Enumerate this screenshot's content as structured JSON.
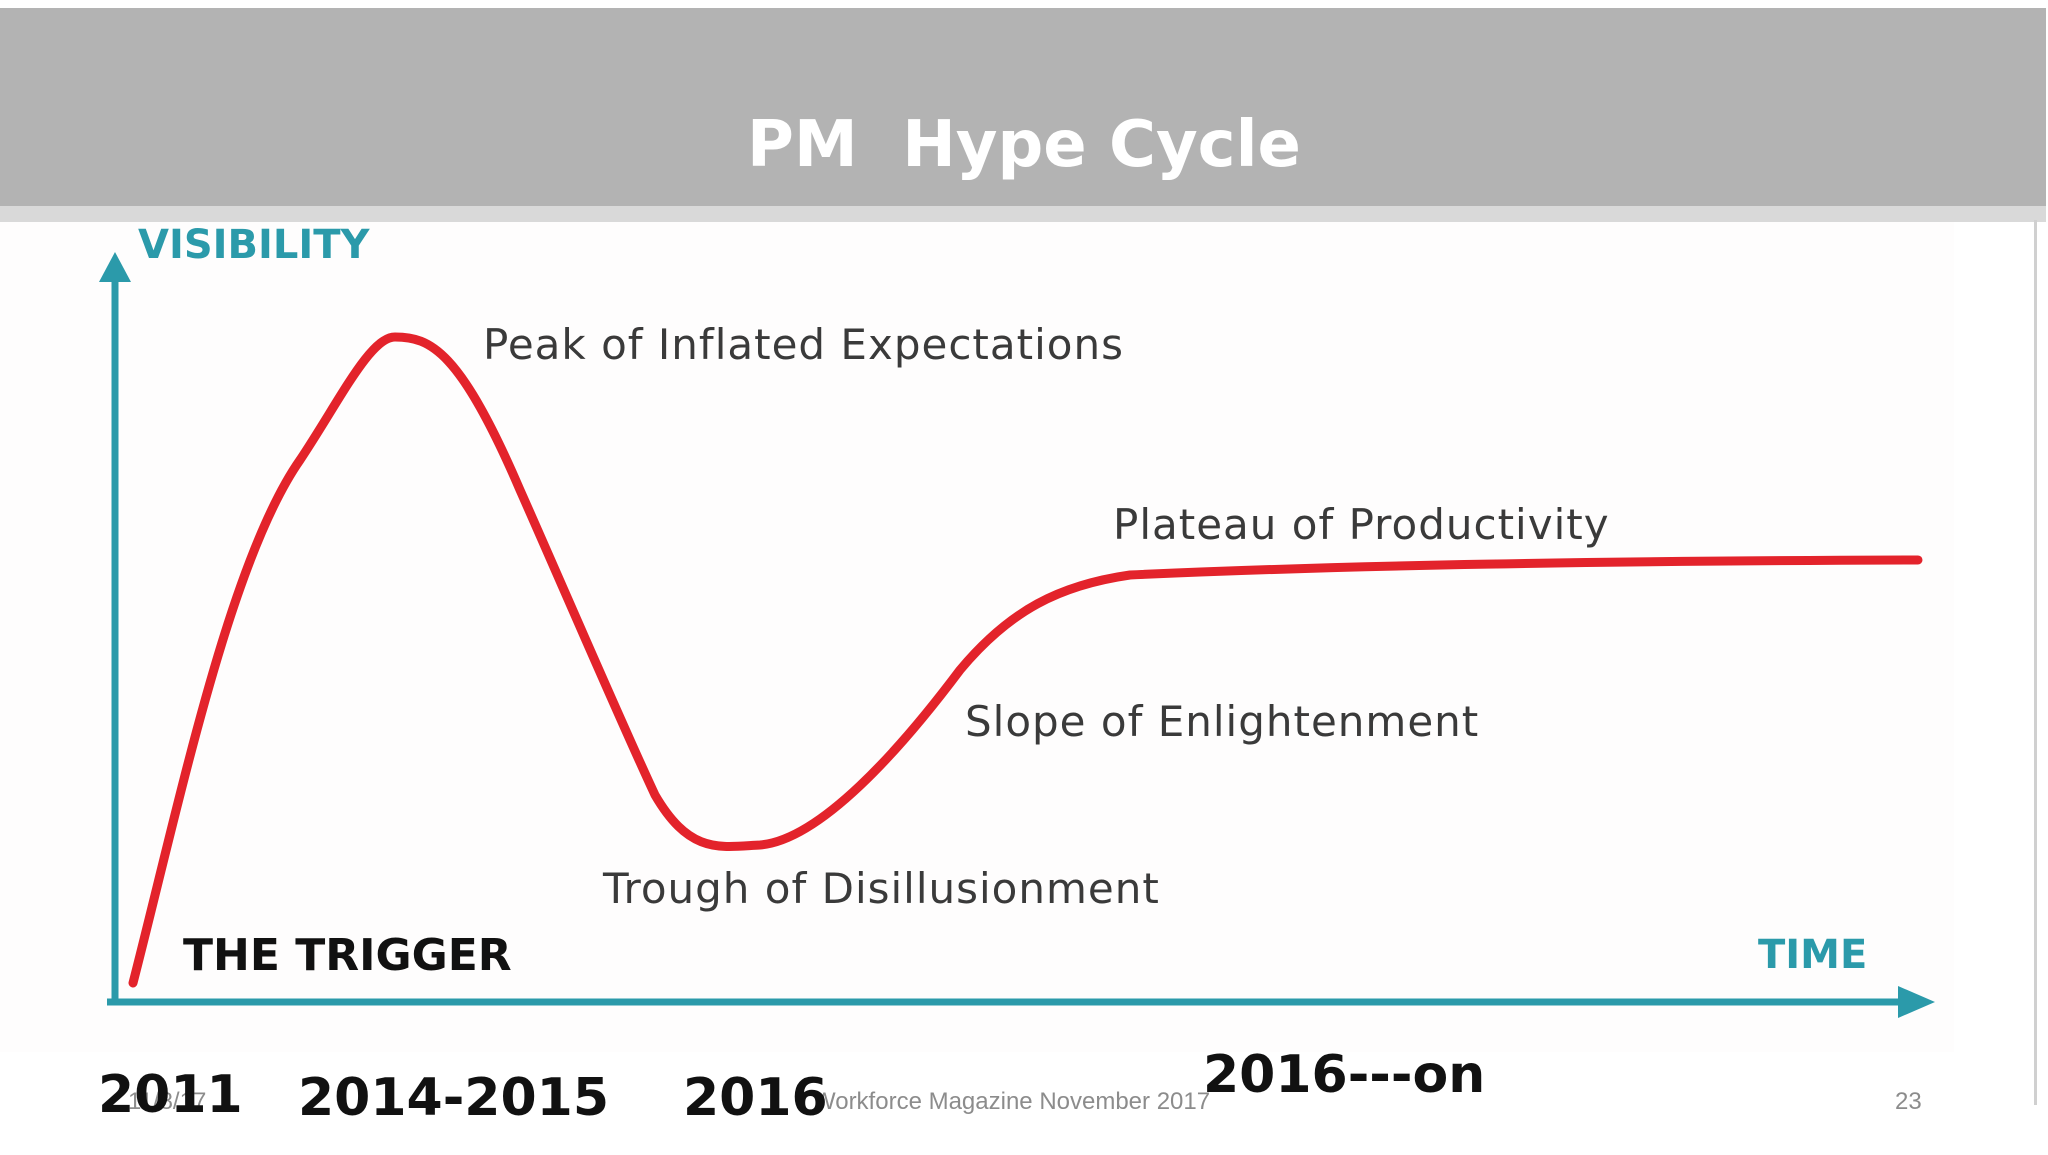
{
  "slide": {
    "title": "PM  Hype Cycle",
    "footer_date": "11/8/17",
    "footer_source": "Workforce Magazine November 2017",
    "page_number": "23"
  },
  "diagram": {
    "y_axis_label": "VISIBILITY",
    "x_axis_label": "TIME",
    "phases": {
      "trigger": "THE TRIGGER",
      "peak": "Peak of Inflated Expectations",
      "trough": "Trough of Disillusionment",
      "slope": "Slope of Enlightenment",
      "plateau": "Plateau of Productivity"
    },
    "years": {
      "trigger": "2011",
      "peak": "2014-2015",
      "trough": "2016",
      "plateau": "2016---on"
    },
    "colors": {
      "curve": "#e3232b",
      "axis": "#2b9aaa",
      "title_bar": "#b3b3b3"
    }
  }
}
